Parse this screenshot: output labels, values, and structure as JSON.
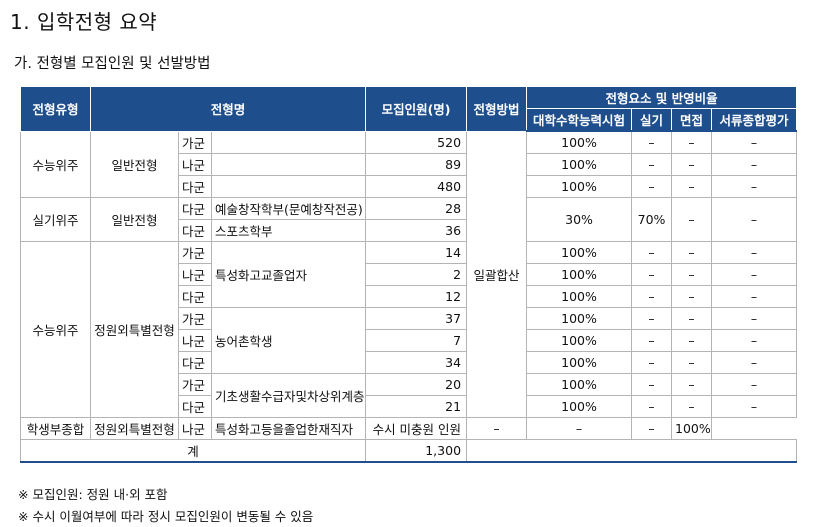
{
  "title": "1. 입학전형 요약",
  "subtitle": "가. 전형별 모집인원 및 선발방법",
  "headers": {
    "type": "전형유형",
    "name": "전형명",
    "quota": "모집인원(명)",
    "method": "전형방법",
    "factors": "전형요소 및 반영비율",
    "f1": "대학수학능력시험",
    "f2": "실기",
    "f3": "면접",
    "f4": "서류종합평가"
  },
  "groups": {
    "g1_type": "수능위주",
    "g1_name": "일반전형",
    "g2_type": "실기위주",
    "g2_name": "일반전형",
    "g3_type": "수능위주",
    "g3_name": "정원외특별전형",
    "g4_type": "학생부종합",
    "g4_name": "정원외특별전형"
  },
  "method_value": "일괄합산",
  "rows": [
    {
      "gun": "가군",
      "sub": "",
      "quota": "520",
      "f1": "100%",
      "f2": "–",
      "f3": "–",
      "f4": "–"
    },
    {
      "gun": "나군",
      "sub": "",
      "quota": "89",
      "f1": "100%",
      "f2": "–",
      "f3": "–",
      "f4": "–"
    },
    {
      "gun": "다군",
      "sub": "",
      "quota": "480",
      "f1": "100%",
      "f2": "–",
      "f3": "–",
      "f4": "–"
    },
    {
      "gun": "다군",
      "sub": "예술창작학부(문예창작전공)",
      "quota": "28"
    },
    {
      "gun": "다군",
      "sub": "스포츠학부",
      "quota": "36"
    },
    {
      "gun": "가군",
      "sub": "특성화고교졸업자",
      "quota": "14",
      "f1": "100%",
      "f2": "–",
      "f3": "–",
      "f4": "–"
    },
    {
      "gun": "나군",
      "sub": "",
      "quota": "2",
      "f1": "100%",
      "f2": "–",
      "f3": "–",
      "f4": "–"
    },
    {
      "gun": "다군",
      "sub": "",
      "quota": "12",
      "f1": "100%",
      "f2": "–",
      "f3": "–",
      "f4": "–"
    },
    {
      "gun": "가군",
      "sub": "농어촌학생",
      "quota": "37",
      "f1": "100%",
      "f2": "–",
      "f3": "–",
      "f4": "–"
    },
    {
      "gun": "나군",
      "sub": "",
      "quota": "7",
      "f1": "100%",
      "f2": "–",
      "f3": "–",
      "f4": "–"
    },
    {
      "gun": "다군",
      "sub": "",
      "quota": "34",
      "f1": "100%",
      "f2": "–",
      "f3": "–",
      "f4": "–"
    },
    {
      "gun": "가군",
      "sub": "기초생활수급자및차상위계층",
      "quota": "20",
      "f1": "100%",
      "f2": "–",
      "f3": "–",
      "f4": "–"
    },
    {
      "gun": "다군",
      "sub": "",
      "quota": "21",
      "f1": "100%",
      "f2": "–",
      "f3": "–",
      "f4": "–"
    },
    {
      "gun": "나군",
      "sub": "특성화고등을졸업한재직자",
      "quota": "수시 미충원 인원",
      "f1": "–",
      "f2": "–",
      "f3": "–",
      "f4": "100%"
    }
  ],
  "sil_f1": "30%",
  "sil_f2": "70%",
  "sil_f3": "–",
  "sil_f4": "–",
  "total_label": "계",
  "total_value": "1,300",
  "notes": [
    "※ 모집인원: 정원 내·외 포함",
    "※ 수시 이월여부에 따라 정시 모집인원이 변동될 수 있음"
  ]
}
